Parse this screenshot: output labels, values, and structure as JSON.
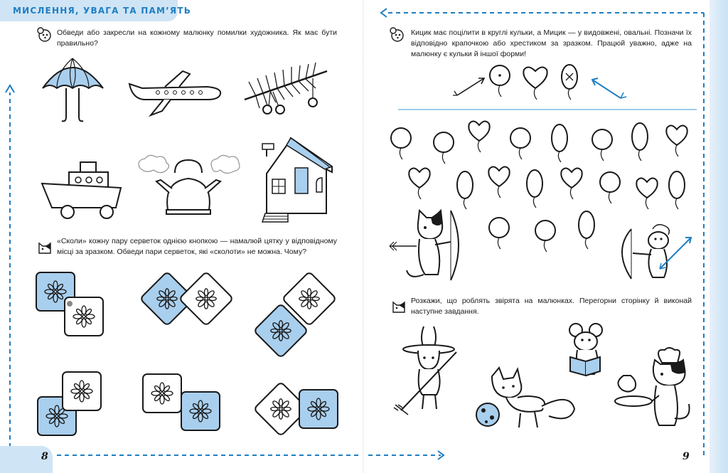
{
  "header": {
    "title": "МИСЛЕННЯ, УВАГА ТА ПАМ’ЯТЬ"
  },
  "page_left": {
    "number": "8",
    "task1": {
      "icon": "mouse-icon",
      "text": "Обведи або закресли на кожному малюнку помилки художника. Як має бути правильно?",
      "pictures": [
        "umbrella",
        "airplane",
        "pine-branch",
        "steamboat",
        "kettle",
        "house"
      ]
    },
    "task2": {
      "icon": "cat-icon",
      "text": "«Сколи» кожну пару серветок однією кнопкою — намалюй цятку у відповідному місці за зразком. Обведи пари серветок, які «сколоти» не можна. Чому?",
      "napkin_pairs": 6
    }
  },
  "page_right": {
    "number": "9",
    "task3": {
      "icon": "mouse-icon",
      "text": "Кицик має поцілити в круглі кульки, а Мицик — у видовжені, овальні. Позначи їх відповідно крапочкою або хрестиком за зразком. Працюй уважно, адже на малюнку є кульки й іншої форми!",
      "sample": [
        "arrow",
        "round-balloon-dot",
        "heart-balloon",
        "oval-balloon-cross",
        "arrow"
      ]
    },
    "task4": {
      "icon": "cat-icon",
      "text": "Розкажи, що роблять звірята на малюнках. Перегорни сторінку й виконай наступне завдання.",
      "scenes": [
        "bunny-raking",
        "mouse-reading",
        "fox-with-ball",
        "cat-chef-cooking"
      ]
    }
  },
  "colors": {
    "accent": "#1f7fc2",
    "light_blue": "#cfe4f5",
    "fill_blue": "#a9cfee",
    "ink": "#1a1a1a"
  }
}
